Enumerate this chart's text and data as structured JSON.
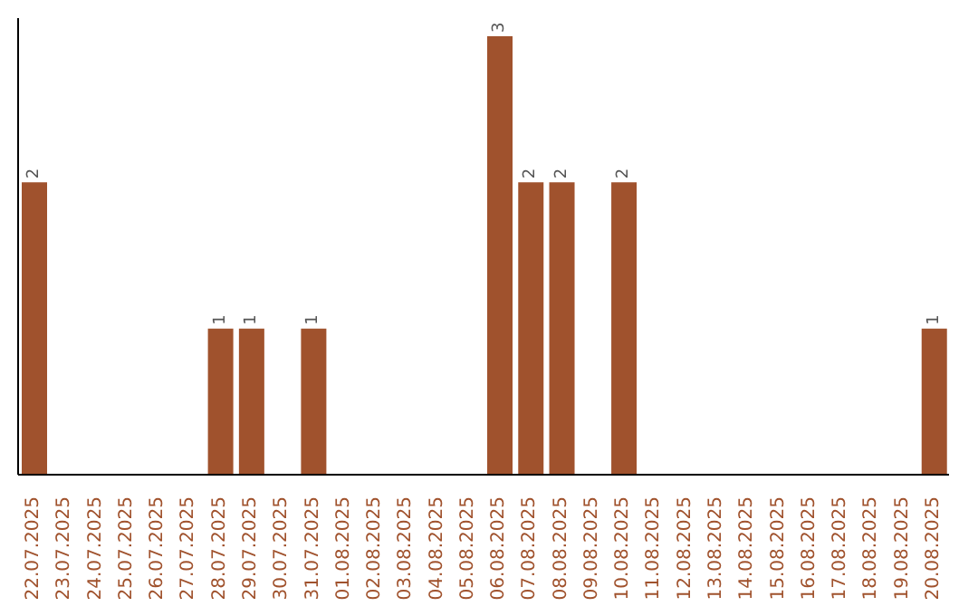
{
  "chart_data": {
    "type": "bar",
    "categories": [
      "22.07.2025",
      "23.07.2025",
      "24.07.2025",
      "25.07.2025",
      "26.07.2025",
      "27.07.2025",
      "28.07.2025",
      "29.07.2025",
      "30.07.2025",
      "31.07.2025",
      "01.08.2025",
      "02.08.2025",
      "03.08.2025",
      "04.08.2025",
      "05.08.2025",
      "06.08.2025",
      "07.08.2025",
      "08.08.2025",
      "09.08.2025",
      "10.08.2025",
      "11.08.2025",
      "12.08.2025",
      "13.08.2025",
      "14.08.2025",
      "15.08.2025",
      "16.08.2025",
      "17.08.2025",
      "18.08.2025",
      "19.08.2025",
      "20.08.2025"
    ],
    "values": [
      2,
      0,
      0,
      0,
      0,
      0,
      1,
      1,
      0,
      1,
      0,
      0,
      0,
      0,
      0,
      3,
      2,
      2,
      0,
      2,
      0,
      0,
      0,
      0,
      0,
      0,
      0,
      0,
      0,
      1
    ],
    "value_labels": [
      "2",
      null,
      null,
      null,
      null,
      null,
      "1",
      "1",
      null,
      "1",
      null,
      null,
      null,
      null,
      null,
      "3",
      "2",
      "2",
      null,
      "2",
      null,
      null,
      null,
      null,
      null,
      null,
      null,
      null,
      null,
      "1"
    ],
    "color": "#a0522d",
    "tick_labels": "x"
  }
}
